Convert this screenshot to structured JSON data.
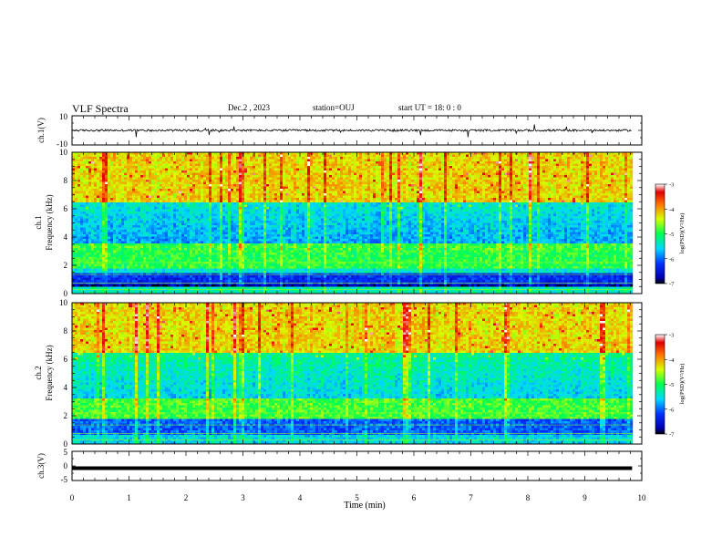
{
  "header": {
    "title": "VLF Spectra",
    "date": "Dec.2 , 2023",
    "station": "station=OUJ",
    "start_time": "start UT = 18: 0 : 0"
  },
  "chart_data": [
    {
      "type": "line",
      "panel": "ch1-waveform",
      "ylabel": "ch.1(V)",
      "ylim": [
        -10,
        10
      ],
      "y_tick_labels": [
        "10",
        "-10"
      ],
      "x_range_min": [
        0,
        9.83
      ],
      "baseline_value": 0
    },
    {
      "type": "heatmap",
      "panel": "ch1-spectrogram",
      "ylabel_top": "ch.1",
      "ylabel": "Frequency (kHz)",
      "ylim": [
        0,
        10
      ],
      "y_tick_labels": [
        "0",
        "2",
        "4",
        "6",
        "8",
        "10"
      ],
      "x_range_min": [
        0,
        9.83
      ],
      "colorbar": {
        "label": "log(PSD)(V²/Hz)",
        "range": [
          -7,
          -3
        ],
        "tick_labels": [
          "-3",
          "-4",
          "-5",
          "-6",
          "-7"
        ]
      }
    },
    {
      "type": "heatmap",
      "panel": "ch2-spectrogram",
      "ylabel_top": "ch.2",
      "ylabel": "Frequency (kHz)",
      "ylim": [
        0,
        10
      ],
      "y_tick_labels": [
        "0",
        "2",
        "4",
        "6",
        "8",
        "10"
      ],
      "x_range_min": [
        0,
        9.83
      ],
      "colorbar": {
        "label": "log(PSD)(V²/Hz)",
        "range": [
          -7,
          -3
        ],
        "tick_labels": [
          "-3",
          "-4",
          "-5",
          "-6",
          "-7"
        ]
      }
    },
    {
      "type": "line",
      "panel": "ch3-waveform",
      "ylabel": "ch.3(V)",
      "ylim": [
        -5,
        5
      ],
      "y_tick_labels": [
        "5",
        "0",
        "-5"
      ],
      "x_range_min": [
        0,
        9.83
      ],
      "baseline_value": -0.8
    }
  ],
  "x_axis": {
    "label": "Time (min)",
    "range": [
      0,
      10
    ],
    "tick_labels": [
      "0",
      "1",
      "2",
      "3",
      "4",
      "5",
      "6",
      "7",
      "8",
      "9",
      "10"
    ]
  }
}
